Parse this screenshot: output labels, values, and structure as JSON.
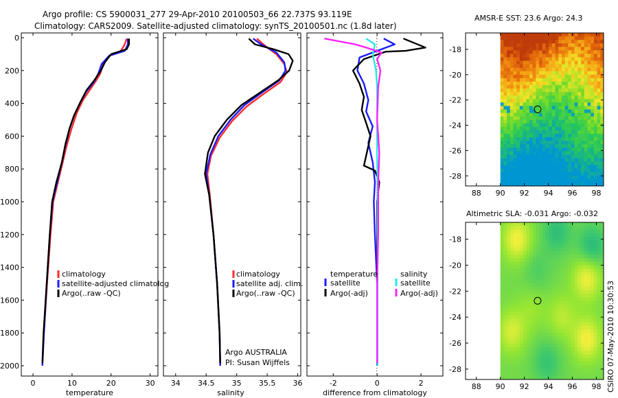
{
  "header": {
    "title_line1": "Argo profile: CS 5900031_277 29-Apr-2010 20100503_66 22.737S 93.119E",
    "title_line2": "Climatology: CARS2009. Satellite-adjusted climatology: synTS_20100501.nc (1.8d later)"
  },
  "side_label": "CSIRO 07-May-2010 10:30:53",
  "colors": {
    "climatology": "#ff2a2a",
    "satellite": "#1a1aff",
    "argo": "#000000",
    "salinity_satellite": "#22e8e8",
    "argo_adj_salinity": "#ff22ff"
  },
  "chart_data": [
    {
      "type": "line",
      "panel": "temperature",
      "xlabel": "temperature",
      "ylabel": "",
      "xlim": [
        -3,
        32
      ],
      "ylim": [
        2050,
        0
      ],
      "xticks": [
        "0",
        "10",
        "20",
        "30"
      ],
      "xtick_values": [
        0,
        10,
        20,
        30
      ],
      "yticks": [
        "0",
        "200",
        "400",
        "600",
        "800",
        "1000",
        "1200",
        "1400",
        "1600",
        "1800",
        "2000"
      ],
      "ytick_values": [
        0,
        200,
        400,
        600,
        800,
        1000,
        1200,
        1400,
        1600,
        1800,
        2000
      ],
      "legend": [
        "climatology",
        "satellite-adjusted climatolog",
        "Argo(..raw -QC)"
      ],
      "series": [
        {
          "name": "climatology",
          "color": "#ff2a2a",
          "points": [
            [
              24.0,
              5
            ],
            [
              23.5,
              40
            ],
            [
              22.5,
              80
            ],
            [
              19.5,
              110
            ],
            [
              18.0,
              160
            ],
            [
              17.2,
              220
            ],
            [
              16.2,
              260
            ],
            [
              14.5,
              320
            ],
            [
              12.8,
              380
            ],
            [
              11.2,
              460
            ],
            [
              9.8,
              560
            ],
            [
              8.6,
              660
            ],
            [
              7.6,
              760
            ],
            [
              6.4,
              880
            ],
            [
              5.2,
              1000
            ],
            [
              4.5,
              1200
            ],
            [
              3.6,
              1500
            ],
            [
              2.8,
              1800
            ],
            [
              2.4,
              2000
            ]
          ]
        },
        {
          "name": "satellite-adjusted climatolog",
          "color": "#1a1aff",
          "points": [
            [
              24.3,
              5
            ],
            [
              24.3,
              40
            ],
            [
              23.5,
              80
            ],
            [
              19.5,
              110
            ],
            [
              17.6,
              160
            ],
            [
              16.7,
              220
            ],
            [
              15.6,
              270
            ],
            [
              13.6,
              330
            ],
            [
              12.0,
              400
            ],
            [
              10.4,
              480
            ],
            [
              9.3,
              560
            ],
            [
              8.3,
              660
            ],
            [
              7.4,
              760
            ],
            [
              6.2,
              880
            ],
            [
              5.0,
              1000
            ],
            [
              4.3,
              1200
            ],
            [
              3.5,
              1500
            ],
            [
              2.8,
              1800
            ],
            [
              2.4,
              2000
            ]
          ]
        },
        {
          "name": "Argo(..raw -QC)",
          "color": "#000000",
          "points": [
            [
              24.6,
              5
            ],
            [
              24.6,
              40
            ],
            [
              24.0,
              70
            ],
            [
              20.0,
              100
            ],
            [
              18.4,
              150
            ],
            [
              17.4,
              200
            ],
            [
              15.7,
              260
            ],
            [
              13.7,
              320
            ],
            [
              12.2,
              390
            ],
            [
              10.6,
              470
            ],
            [
              9.4,
              550
            ],
            [
              8.3,
              650
            ],
            [
              7.4,
              760
            ],
            [
              6.0,
              880
            ],
            [
              4.9,
              1000
            ],
            [
              4.3,
              1200
            ],
            [
              3.5,
              1500
            ],
            [
              2.7,
              1800
            ],
            [
              2.4,
              1985
            ]
          ]
        }
      ]
    },
    {
      "type": "line",
      "panel": "salinity",
      "xlabel": "salinity",
      "ylabel": "",
      "xlim": [
        33.8,
        36.05
      ],
      "ylim": [
        2050,
        0
      ],
      "xticks": [
        "34",
        "34.5",
        "35",
        "35.5",
        "36"
      ],
      "xtick_values": [
        34,
        34.5,
        35,
        35.5,
        36
      ],
      "legend": [
        "climatology",
        "satellite adj. clim.",
        "Argo(..raw -QC)"
      ],
      "annotations": [
        "Argo AUSTRALIA",
        "PI: Susan Wijffels"
      ],
      "series": [
        {
          "name": "climatology",
          "color": "#ff2a2a",
          "points": [
            [
              35.33,
              5
            ],
            [
              35.47,
              50
            ],
            [
              35.65,
              100
            ],
            [
              35.78,
              160
            ],
            [
              35.82,
              210
            ],
            [
              35.72,
              270
            ],
            [
              35.45,
              340
            ],
            [
              35.16,
              420
            ],
            [
              34.92,
              510
            ],
            [
              34.72,
              610
            ],
            [
              34.58,
              720
            ],
            [
              34.52,
              830
            ],
            [
              34.56,
              960
            ],
            [
              34.62,
              1200
            ],
            [
              34.68,
              1500
            ],
            [
              34.72,
              1800
            ],
            [
              34.73,
              2000
            ]
          ]
        },
        {
          "name": "satellite adj. clim.",
          "color": "#1a1aff",
          "points": [
            [
              35.27,
              5
            ],
            [
              35.4,
              40
            ],
            [
              35.65,
              90
            ],
            [
              35.78,
              150
            ],
            [
              35.8,
              200
            ],
            [
              35.7,
              260
            ],
            [
              35.43,
              330
            ],
            [
              35.13,
              410
            ],
            [
              34.9,
              500
            ],
            [
              34.7,
              600
            ],
            [
              34.57,
              710
            ],
            [
              34.5,
              830
            ],
            [
              34.55,
              960
            ],
            [
              34.62,
              1200
            ],
            [
              34.68,
              1500
            ],
            [
              34.72,
              1800
            ],
            [
              34.73,
              2000
            ]
          ]
        },
        {
          "name": "Argo(..raw -QC)",
          "color": "#000000",
          "points": [
            [
              35.2,
              5
            ],
            [
              35.3,
              40
            ],
            [
              35.6,
              70
            ],
            [
              35.85,
              100
            ],
            [
              35.92,
              140
            ],
            [
              35.86,
              200
            ],
            [
              35.68,
              260
            ],
            [
              35.4,
              330
            ],
            [
              35.08,
              410
            ],
            [
              34.84,
              500
            ],
            [
              34.64,
              600
            ],
            [
              34.53,
              700
            ],
            [
              34.48,
              830
            ],
            [
              34.55,
              960
            ],
            [
              34.62,
              1200
            ],
            [
              34.68,
              1500
            ],
            [
              34.72,
              1800
            ],
            [
              34.73,
              1985
            ]
          ]
        }
      ]
    },
    {
      "type": "line",
      "panel": "difference",
      "xlabel": "difference from climatology",
      "ylabel": "",
      "xlim": [
        -3.2,
        3.0
      ],
      "ylim": [
        2050,
        0
      ],
      "xticks": [
        "-2",
        "0",
        "2"
      ],
      "xtick_values": [
        -2,
        0,
        2
      ],
      "legend_headers": [
        "temperature",
        "salinity"
      ],
      "legend": [
        "satellite",
        "Argo(-adj)",
        "satellite",
        "Argo(-adj)"
      ],
      "series": [
        {
          "name": "satellite",
          "group": "temperature",
          "color": "#1a1aff",
          "points": [
            [
              0.3,
              5
            ],
            [
              0.8,
              40
            ],
            [
              0.2,
              70
            ],
            [
              -0.8,
              120
            ],
            [
              -0.9,
              200
            ],
            [
              -0.6,
              280
            ],
            [
              -0.4,
              380
            ],
            [
              -0.5,
              450
            ],
            [
              -0.2,
              540
            ],
            [
              -0.4,
              640
            ],
            [
              -0.2,
              760
            ],
            [
              -0.1,
              880
            ],
            [
              -0.15,
              1000
            ],
            [
              -0.1,
              1200
            ],
            [
              0.0,
              1500
            ],
            [
              0.0,
              1800
            ],
            [
              0.0,
              2000
            ]
          ]
        },
        {
          "name": "Argo(-adj)",
          "group": "temperature",
          "color": "#000000",
          "points": [
            [
              1.2,
              5
            ],
            [
              2.2,
              60
            ],
            [
              1.3,
              80
            ],
            [
              0.4,
              85
            ],
            [
              -0.6,
              130
            ],
            [
              -1.1,
              200
            ],
            [
              -0.8,
              280
            ],
            [
              -0.6,
              360
            ],
            [
              -0.7,
              440
            ],
            [
              -0.5,
              520
            ],
            [
              -0.3,
              600
            ],
            [
              -0.5,
              720
            ],
            [
              -0.6,
              780
            ],
            [
              -0.1,
              810
            ],
            [
              0.1,
              880
            ],
            [
              0.0,
              1000
            ],
            [
              0.0,
              1200
            ],
            [
              0.0,
              1500
            ],
            [
              0.0,
              1800
            ],
            [
              0.0,
              1985
            ]
          ]
        },
        {
          "name": "satellite",
          "group": "salinity",
          "color": "#22e8e8",
          "points": [
            [
              -0.5,
              5
            ],
            [
              -0.1,
              40
            ],
            [
              -0.2,
              100
            ],
            [
              -0.05,
              200
            ],
            [
              0.0,
              300
            ],
            [
              0.0,
              500
            ],
            [
              0.0,
              700
            ],
            [
              0.02,
              900
            ],
            [
              0.02,
              1200
            ],
            [
              0.02,
              1500
            ],
            [
              0.02,
              1800
            ],
            [
              0.02,
              2000
            ]
          ]
        },
        {
          "name": "Argo(-adj)",
          "group": "salinity",
          "color": "#ff22ff",
          "points": [
            [
              -2.4,
              5
            ],
            [
              -1.0,
              40
            ],
            [
              -0.5,
              60
            ],
            [
              0.2,
              90
            ],
            [
              0.0,
              130
            ],
            [
              0.15,
              200
            ],
            [
              0.05,
              300
            ],
            [
              0.0,
              500
            ],
            [
              0.1,
              700
            ],
            [
              0.05,
              900
            ],
            [
              0.05,
              1200
            ],
            [
              0.0,
              1500
            ],
            [
              0.0,
              1800
            ],
            [
              0.0,
              1985
            ]
          ]
        }
      ]
    },
    {
      "type": "heatmap",
      "panel": "sst-map",
      "title": "AMSR-E SST: 23.6  Argo: 24.3",
      "xlim": [
        87.1,
        98.6
      ],
      "ylim": [
        -28.8,
        -16.7
      ],
      "xticks": [
        "88",
        "90",
        "92",
        "94",
        "96",
        "98"
      ],
      "xtick_values": [
        88,
        90,
        92,
        94,
        96,
        98
      ],
      "yticks": [
        "-18",
        "-20",
        "-22",
        "-24",
        "-26",
        "-28"
      ],
      "ytick_values": [
        -18,
        -20,
        -22,
        -24,
        -26,
        -28
      ],
      "data_extent": {
        "lon": [
          90,
          98.6
        ],
        "lat": [
          -28.8,
          -16.7
        ]
      },
      "marker": {
        "lon": 93.1,
        "lat": -22.74
      }
    },
    {
      "type": "heatmap",
      "panel": "sla-map",
      "title": "Altimetric SLA: -0.031  Argo: -0.032",
      "xlim": [
        87.1,
        98.6
      ],
      "ylim": [
        -28.8,
        -16.7
      ],
      "xticks": [
        "88",
        "90",
        "92",
        "94",
        "96",
        "98"
      ],
      "xtick_values": [
        88,
        90,
        92,
        94,
        96,
        98
      ],
      "yticks": [
        "-18",
        "-20",
        "-22",
        "-24",
        "-26",
        "-28"
      ],
      "ytick_values": [
        -18,
        -20,
        -22,
        -24,
        -26,
        -28
      ],
      "data_extent": {
        "lon": [
          90,
          98.6
        ],
        "lat": [
          -28.8,
          -16.7
        ]
      },
      "marker": {
        "lon": 93.1,
        "lat": -22.74
      }
    }
  ]
}
